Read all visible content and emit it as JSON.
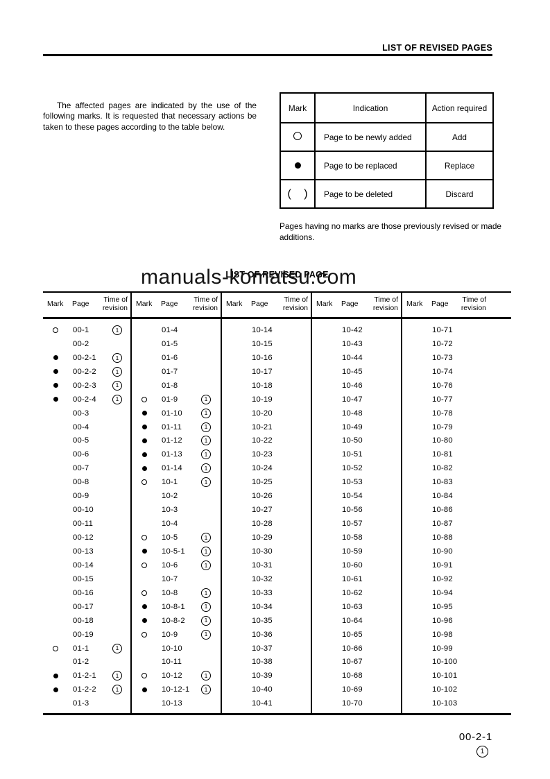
{
  "page": {
    "header_title": "LIST OF REVISED PAGES",
    "intro": "The affected pages are indicated by the use of the following marks. It is requested that necessary actions be taken to these pages according to the table below.",
    "note": "Pages having no marks are those previously revised or made additions.",
    "section_title": "LIST OF REVISED PAGE",
    "watermark": "manuals-komatsu.com",
    "footer_page_number": "00-2-1",
    "footer_revision_mark": "1"
  },
  "marks_table": {
    "headers": [
      "Mark",
      "Indication",
      "Action required"
    ],
    "rows": [
      {
        "mark": "○",
        "indication": "Page to be newly added",
        "action": "Add"
      },
      {
        "mark": "●",
        "indication": "Page to be replaced",
        "action": "Replace"
      },
      {
        "mark": "( )",
        "indication": "Page to be deleted",
        "action": "Discard"
      }
    ]
  },
  "revision_table": {
    "column_headers": {
      "mark": "Mark",
      "page": "Page",
      "time": "Time of revision"
    },
    "groups": [
      [
        [
          "○",
          "00-1",
          "1"
        ],
        [
          "",
          "00-2",
          ""
        ],
        [
          "●",
          "00-2-1",
          "1"
        ],
        [
          "●",
          "00-2-2",
          "1"
        ],
        [
          "●",
          "00-2-3",
          "1"
        ],
        [
          "●",
          "00-2-4",
          "1"
        ],
        [
          "",
          "00-3",
          ""
        ],
        [
          "",
          "00-4",
          ""
        ],
        [
          "",
          "00-5",
          ""
        ],
        [
          "",
          "00-6",
          ""
        ],
        [
          "",
          "00-7",
          ""
        ],
        [
          "",
          "00-8",
          ""
        ],
        [
          "",
          "00-9",
          ""
        ],
        [
          "",
          "00-10",
          ""
        ],
        [
          "",
          "00-11",
          ""
        ],
        [
          "",
          "00-12",
          ""
        ],
        [
          "",
          "00-13",
          ""
        ],
        [
          "",
          "00-14",
          ""
        ],
        [
          "",
          "00-15",
          ""
        ],
        [
          "",
          "00-16",
          ""
        ],
        [
          "",
          "00-17",
          ""
        ],
        [
          "",
          "00-18",
          ""
        ],
        [
          "",
          "00-19",
          ""
        ],
        [
          "○",
          "01-1",
          "1"
        ],
        [
          "",
          "01-2",
          ""
        ],
        [
          "●",
          "01-2-1",
          "1"
        ],
        [
          "●",
          "01-2-2",
          "1"
        ],
        [
          "",
          "01-3",
          ""
        ]
      ],
      [
        [
          "",
          "01-4",
          ""
        ],
        [
          "",
          "01-5",
          ""
        ],
        [
          "",
          "01-6",
          ""
        ],
        [
          "",
          "01-7",
          ""
        ],
        [
          "",
          "01-8",
          ""
        ],
        [
          "○",
          "01-9",
          "1"
        ],
        [
          "●",
          "01-10",
          "1"
        ],
        [
          "●",
          "01-11",
          "1"
        ],
        [
          "●",
          "01-12",
          "1"
        ],
        [
          "●",
          "01-13",
          "1"
        ],
        [
          "●",
          "01-14",
          "1"
        ],
        [
          "○",
          "10-1",
          "1"
        ],
        [
          "",
          "10-2",
          ""
        ],
        [
          "",
          "10-3",
          ""
        ],
        [
          "",
          "10-4",
          ""
        ],
        [
          "○",
          "10-5",
          "1"
        ],
        [
          "●",
          "10-5-1",
          "1"
        ],
        [
          "○",
          "10-6",
          "1"
        ],
        [
          "",
          "10-7",
          ""
        ],
        [
          "○",
          "10-8",
          "1"
        ],
        [
          "●",
          "10-8-1",
          "1"
        ],
        [
          "●",
          "10-8-2",
          "1"
        ],
        [
          "○",
          "10-9",
          "1"
        ],
        [
          "",
          "10-10",
          ""
        ],
        [
          "",
          "10-11",
          ""
        ],
        [
          "○",
          "10-12",
          "1"
        ],
        [
          "●",
          "10-12-1",
          "1"
        ],
        [
          "",
          "10-13",
          ""
        ]
      ],
      [
        [
          "",
          "10-14",
          ""
        ],
        [
          "",
          "10-15",
          ""
        ],
        [
          "",
          "10-16",
          ""
        ],
        [
          "",
          "10-17",
          ""
        ],
        [
          "",
          "10-18",
          ""
        ],
        [
          "",
          "10-19",
          ""
        ],
        [
          "",
          "10-20",
          ""
        ],
        [
          "",
          "10-21",
          ""
        ],
        [
          "",
          "10-22",
          ""
        ],
        [
          "",
          "10-23",
          ""
        ],
        [
          "",
          "10-24",
          ""
        ],
        [
          "",
          "10-25",
          ""
        ],
        [
          "",
          "10-26",
          ""
        ],
        [
          "",
          "10-27",
          ""
        ],
        [
          "",
          "10-28",
          ""
        ],
        [
          "",
          "10-29",
          ""
        ],
        [
          "",
          "10-30",
          ""
        ],
        [
          "",
          "10-31",
          ""
        ],
        [
          "",
          "10-32",
          ""
        ],
        [
          "",
          "10-33",
          ""
        ],
        [
          "",
          "10-34",
          ""
        ],
        [
          "",
          "10-35",
          ""
        ],
        [
          "",
          "10-36",
          ""
        ],
        [
          "",
          "10-37",
          ""
        ],
        [
          "",
          "10-38",
          ""
        ],
        [
          "",
          "10-39",
          ""
        ],
        [
          "",
          "10-40",
          ""
        ],
        [
          "",
          "10-41",
          ""
        ]
      ],
      [
        [
          "",
          "10-42",
          ""
        ],
        [
          "",
          "10-43",
          ""
        ],
        [
          "",
          "10-44",
          ""
        ],
        [
          "",
          "10-45",
          ""
        ],
        [
          "",
          "10-46",
          ""
        ],
        [
          "",
          "10-47",
          ""
        ],
        [
          "",
          "10-48",
          ""
        ],
        [
          "",
          "10-49",
          ""
        ],
        [
          "",
          "10-50",
          ""
        ],
        [
          "",
          "10-51",
          ""
        ],
        [
          "",
          "10-52",
          ""
        ],
        [
          "",
          "10-53",
          ""
        ],
        [
          "",
          "10-54",
          ""
        ],
        [
          "",
          "10-56",
          ""
        ],
        [
          "",
          "10-57",
          ""
        ],
        [
          "",
          "10-58",
          ""
        ],
        [
          "",
          "10-59",
          ""
        ],
        [
          "",
          "10-60",
          ""
        ],
        [
          "",
          "10-61",
          ""
        ],
        [
          "",
          "10-62",
          ""
        ],
        [
          "",
          "10-63",
          ""
        ],
        [
          "",
          "10-64",
          ""
        ],
        [
          "",
          "10-65",
          ""
        ],
        [
          "",
          "10-66",
          ""
        ],
        [
          "",
          "10-67",
          ""
        ],
        [
          "",
          "10-68",
          ""
        ],
        [
          "",
          "10-69",
          ""
        ],
        [
          "",
          "10-70",
          ""
        ]
      ],
      [
        [
          "",
          "10-71",
          ""
        ],
        [
          "",
          "10-72",
          ""
        ],
        [
          "",
          "10-73",
          ""
        ],
        [
          "",
          "10-74",
          ""
        ],
        [
          "",
          "10-76",
          ""
        ],
        [
          "",
          "10-77",
          ""
        ],
        [
          "",
          "10-78",
          ""
        ],
        [
          "",
          "10-79",
          ""
        ],
        [
          "",
          "10-80",
          ""
        ],
        [
          "",
          "10-81",
          ""
        ],
        [
          "",
          "10-82",
          ""
        ],
        [
          "",
          "10-83",
          ""
        ],
        [
          "",
          "10-84",
          ""
        ],
        [
          "",
          "10-86",
          ""
        ],
        [
          "",
          "10-87",
          ""
        ],
        [
          "",
          "10-88",
          ""
        ],
        [
          "",
          "10-90",
          ""
        ],
        [
          "",
          "10-91",
          ""
        ],
        [
          "",
          "10-92",
          ""
        ],
        [
          "",
          "10-94",
          ""
        ],
        [
          "",
          "10-95",
          ""
        ],
        [
          "",
          "10-96",
          ""
        ],
        [
          "",
          "10-98",
          ""
        ],
        [
          "",
          "10-99",
          ""
        ],
        [
          "",
          "10-100",
          ""
        ],
        [
          "",
          "10-101",
          ""
        ],
        [
          "",
          "10-102",
          ""
        ],
        [
          "",
          "10-103",
          ""
        ]
      ]
    ]
  }
}
